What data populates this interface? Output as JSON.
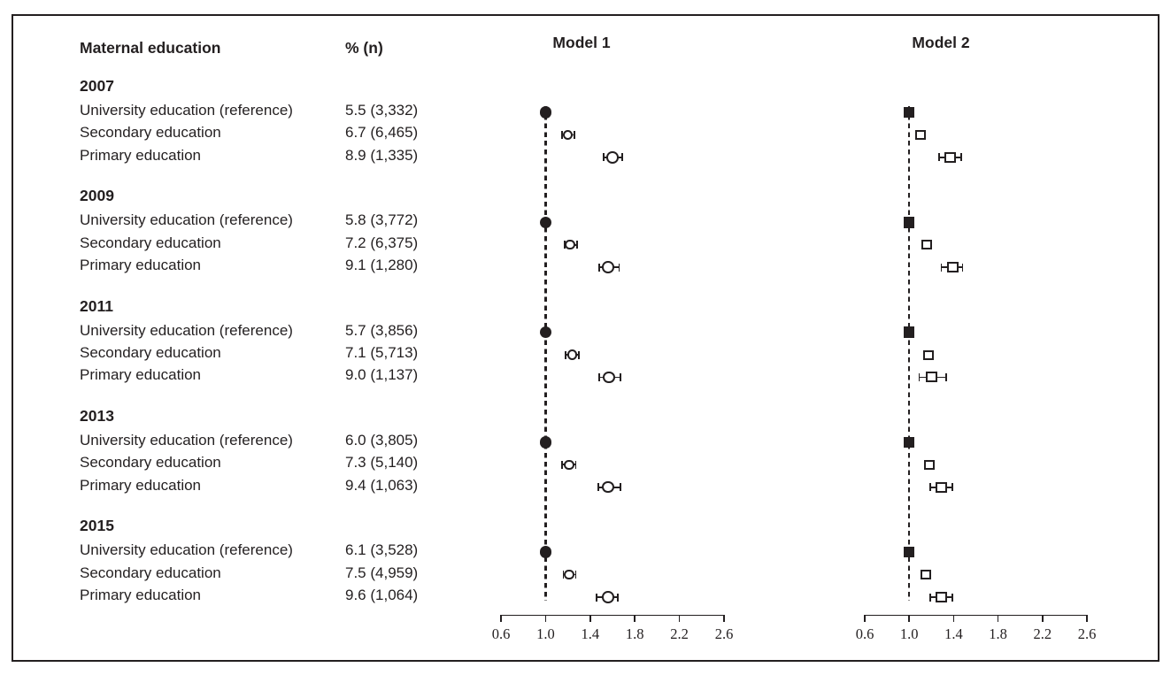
{
  "chart_data": {
    "type": "forest",
    "title_columns": {
      "education": "Maternal education",
      "pct_n": "% (n)"
    },
    "axis": {
      "range": [
        0.6,
        2.6
      ],
      "ticks": [
        "0.6",
        "1.0",
        "1.4",
        "1.8",
        "2.2",
        "2.6"
      ],
      "reference_line": 1.0,
      "grid": false
    },
    "panels": [
      {
        "id": "model1",
        "title": "Model 1",
        "marker": "circle"
      },
      {
        "id": "model2",
        "title": "Model 2",
        "marker": "square"
      }
    ],
    "groups": [
      {
        "year": "2007",
        "rows": [
          {
            "label": "University education (reference)",
            "pct_n": "5.5 (3,332)",
            "model1": {
              "or": 1.0,
              "ref": true
            },
            "model2": {
              "or": 1.0,
              "ref": true
            }
          },
          {
            "label": "Secondary education",
            "pct_n": "6.7 (6,465)",
            "model1": {
              "or": 1.2,
              "lo": 1.15,
              "hi": 1.26
            },
            "model2": {
              "or": 1.1
            }
          },
          {
            "label": "Primary education",
            "pct_n": "8.9 (1,335)",
            "model1": {
              "or": 1.6,
              "lo": 1.52,
              "hi": 1.69
            },
            "model2": {
              "or": 1.37,
              "lo": 1.27,
              "hi": 1.47
            }
          }
        ]
      },
      {
        "year": "2009",
        "rows": [
          {
            "label": "University education (reference)",
            "pct_n": "5.8 (3,772)",
            "model1": {
              "or": 1.0,
              "ref": true
            },
            "model2": {
              "or": 1.0,
              "ref": true
            }
          },
          {
            "label": "Secondary education",
            "pct_n": "7.2 (6,375)",
            "model1": {
              "or": 1.22,
              "lo": 1.17,
              "hi": 1.28
            },
            "model2": {
              "or": 1.16
            }
          },
          {
            "label": "Primary education",
            "pct_n": "9.1 (1,280)",
            "model1": {
              "or": 1.56,
              "lo": 1.48,
              "hi": 1.66
            },
            "model2": {
              "or": 1.39,
              "lo": 1.29,
              "hi": 1.48
            }
          }
        ]
      },
      {
        "year": "2011",
        "rows": [
          {
            "label": "University education (reference)",
            "pct_n": "5.7 (3,856)",
            "model1": {
              "or": 1.0,
              "ref": true
            },
            "model2": {
              "or": 1.0,
              "ref": true
            }
          },
          {
            "label": "Secondary education",
            "pct_n": "7.1 (5,713)",
            "model1": {
              "or": 1.24,
              "lo": 1.18,
              "hi": 1.3
            },
            "model2": {
              "or": 1.17
            }
          },
          {
            "label": "Primary education",
            "pct_n": "9.0 (1,137)",
            "model1": {
              "or": 1.57,
              "lo": 1.48,
              "hi": 1.67
            },
            "model2": {
              "or": 1.2,
              "lo": 1.09,
              "hi": 1.33
            }
          }
        ]
      },
      {
        "year": "2013",
        "rows": [
          {
            "label": "University education (reference)",
            "pct_n": "6.0 (3,805)",
            "model1": {
              "or": 1.0,
              "ref": true
            },
            "model2": {
              "or": 1.0,
              "ref": true
            }
          },
          {
            "label": "Secondary education",
            "pct_n": "7.3 (5,140)",
            "model1": {
              "or": 1.21,
              "lo": 1.15,
              "hi": 1.27
            },
            "model2": {
              "or": 1.18
            }
          },
          {
            "label": "Primary education",
            "pct_n": "9.4 (1,063)",
            "model1": {
              "or": 1.56,
              "lo": 1.47,
              "hi": 1.67
            },
            "model2": {
              "or": 1.29,
              "lo": 1.19,
              "hi": 1.39
            }
          }
        ]
      },
      {
        "year": "2015",
        "rows": [
          {
            "label": "University education (reference)",
            "pct_n": "6.1 (3,528)",
            "model1": {
              "or": 1.0,
              "ref": true
            },
            "model2": {
              "or": 1.0,
              "ref": true
            }
          },
          {
            "label": "Secondary education",
            "pct_n": "7.5 (4,959)",
            "model1": {
              "or": 1.21,
              "lo": 1.16,
              "hi": 1.27
            },
            "model2": {
              "or": 1.15
            }
          },
          {
            "label": "Primary education",
            "pct_n": "9.6 (1,064)",
            "model1": {
              "or": 1.56,
              "lo": 1.46,
              "hi": 1.65
            },
            "model2": {
              "or": 1.29,
              "lo": 1.19,
              "hi": 1.39
            }
          }
        ]
      }
    ]
  }
}
